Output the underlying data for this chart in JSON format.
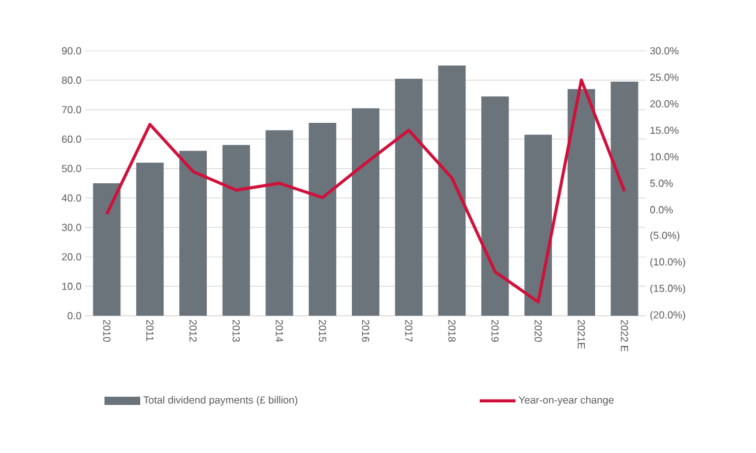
{
  "chart_data": {
    "type": "bar",
    "categories": [
      "2010",
      "2011",
      "2012",
      "2013",
      "2014",
      "2015",
      "2016",
      "2017",
      "2018",
      "2019",
      "2020",
      "2021E",
      "2022 E"
    ],
    "series": [
      {
        "name": "Total dividend payments (£ billion)",
        "color": "#6b737b",
        "values": [
          45,
          52,
          56,
          58,
          63,
          65.5,
          70.5,
          80.5,
          85,
          74.5,
          61.5,
          77,
          79.5
        ]
      },
      {
        "name": "Year-on-year change",
        "type": "line",
        "axis": "y2",
        "color": "#d0103a",
        "values": [
          -0.8,
          16.1,
          7.2,
          3.7,
          5.0,
          2.3,
          8.8,
          15.0,
          6.0,
          -11.7,
          -17.4,
          24.5,
          3.5
        ]
      }
    ],
    "ylim": [
      0,
      90
    ],
    "yticks": [
      {
        "value": 0,
        "label": "0.0"
      },
      {
        "value": 10,
        "label": "10.0"
      },
      {
        "value": 20,
        "label": "20.0"
      },
      {
        "value": 30,
        "label": "30.0"
      },
      {
        "value": 40,
        "label": "40.0"
      },
      {
        "value": 50,
        "label": "50.0"
      },
      {
        "value": 60,
        "label": "60.0"
      },
      {
        "value": 70,
        "label": "70.0"
      },
      {
        "value": 80,
        "label": "80.0"
      },
      {
        "value": 90,
        "label": "90.0"
      }
    ],
    "y2lim": [
      -20,
      30
    ],
    "y2ticks": [
      {
        "value": -20,
        "label": "(20.0%)"
      },
      {
        "value": -15,
        "label": "(15.0%)"
      },
      {
        "value": -10,
        "label": "(10.0%)"
      },
      {
        "value": -5,
        "label": "(5.0%)"
      },
      {
        "value": 0,
        "label": "0.0%"
      },
      {
        "value": 5,
        "label": "5.0%"
      },
      {
        "value": 10,
        "label": "10.0%"
      },
      {
        "value": 15,
        "label": "15.0%"
      },
      {
        "value": 20,
        "label": "20.0%"
      },
      {
        "value": 25,
        "label": "25.0%"
      },
      {
        "value": 30,
        "label": "30.0%"
      }
    ],
    "grid": "y",
    "legend": "bottom",
    "marker": "none",
    "line_style": "solid"
  }
}
